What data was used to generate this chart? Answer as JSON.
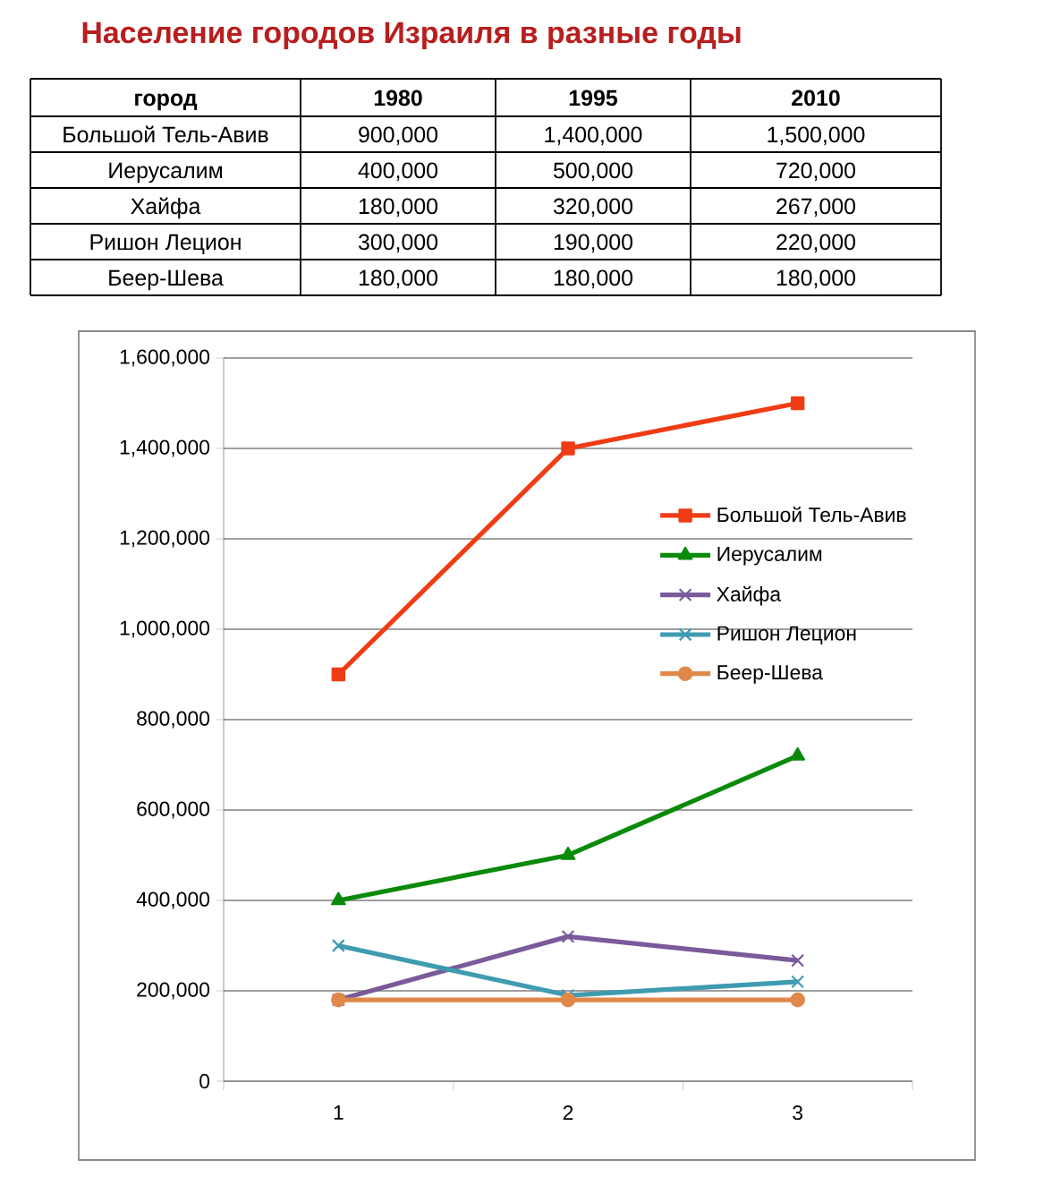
{
  "chart_data": {
    "type": "line",
    "title": "Население городов Израиля в разные годы",
    "categories": [
      "1",
      "2",
      "3"
    ],
    "series": [
      {
        "name": "Большой Тель-Авив",
        "color": "#f03c14",
        "marker": "square",
        "values": [
          900000,
          1400000,
          1500000
        ],
        "value_labels": [
          "900,000",
          "1,400,000",
          "1,500,000"
        ]
      },
      {
        "name": "Иерусалим",
        "color": "#0a8a0a",
        "marker": "triangle",
        "values": [
          400000,
          500000,
          720000
        ],
        "value_labels": [
          "400,000",
          "500,000",
          "720,000"
        ]
      },
      {
        "name": "Хайфа",
        "color": "#7a5a9a",
        "marker": "cross",
        "values": [
          180000,
          320000,
          267000
        ],
        "value_labels": [
          "180,000",
          "320,000",
          "267,000"
        ]
      },
      {
        "name": "Ришон Лецион",
        "color": "#3f9bb0",
        "marker": "cross",
        "values": [
          300000,
          190000,
          220000
        ],
        "value_labels": [
          "300,000",
          "190,000",
          "220,000"
        ]
      },
      {
        "name": "Беер-Шева",
        "color": "#e0884a",
        "marker": "circle",
        "values": [
          180000,
          180000,
          180000
        ],
        "value_labels": [
          "180,000",
          "180,000",
          "180,000"
        ]
      }
    ],
    "ylim": [
      0,
      1600000
    ],
    "yticks": [
      0,
      {
        "value": 200000,
        "label": "200,000"
      },
      {
        "value": 400000,
        "label": "400,000"
      },
      {
        "value": 600000,
        "label": "600,000"
      },
      {
        "value": 800000,
        "label": "800,000"
      },
      {
        "value": 1000000,
        "label": "1,000,000"
      },
      {
        "value": 1200000,
        "label": "1,200,000"
      },
      {
        "value": 1400000,
        "label": "1,400,000"
      },
      {
        "value": 1600000,
        "label": "1,600,000"
      }
    ],
    "grid": "y",
    "legend": "right",
    "annotations": [
      "город",
      "1980",
      "1995",
      "2010"
    ]
  }
}
